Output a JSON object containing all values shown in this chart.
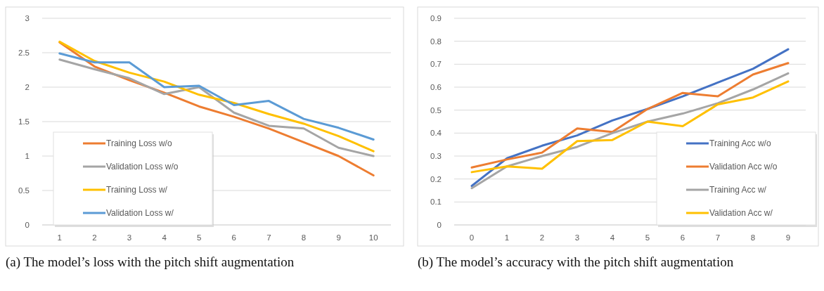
{
  "chart_data": [
    {
      "type": "line",
      "title": "(a) The model’s loss with the pitch shift augmentation",
      "categories": [
        "1",
        "2",
        "3",
        "4",
        "5",
        "6",
        "7",
        "8",
        "9",
        "10"
      ],
      "ylim": [
        0,
        3
      ],
      "yticks": [
        0,
        0.5,
        1,
        1.5,
        2,
        2.5,
        3
      ],
      "grid": "y",
      "legend": "bottom left",
      "marker": "none",
      "line_style": "solid",
      "series": [
        {
          "name": "Training Loss w/o",
          "color": "#ed7d31",
          "values": [
            2.65,
            2.3,
            2.1,
            1.92,
            1.72,
            1.57,
            1.4,
            1.2,
            1.0,
            0.72
          ]
        },
        {
          "name": "Validation Loss w/o",
          "color": "#a5a5a5",
          "values": [
            2.4,
            2.26,
            2.13,
            1.9,
            2.0,
            1.63,
            1.44,
            1.4,
            1.12,
            1.0
          ]
        },
        {
          "name": "Training Loss w/",
          "color": "#ffc000",
          "values": [
            2.66,
            2.38,
            2.21,
            2.08,
            1.89,
            1.77,
            1.61,
            1.47,
            1.29,
            1.07
          ]
        },
        {
          "name": "Validation Loss w/",
          "color": "#5b9bd5",
          "values": [
            2.49,
            2.36,
            2.36,
            2.0,
            2.02,
            1.74,
            1.8,
            1.54,
            1.41,
            1.24
          ]
        }
      ]
    },
    {
      "type": "line",
      "title": "(b) The model’s accuracy with the pitch shift augmentation",
      "categories": [
        "0",
        "1",
        "2",
        "3",
        "4",
        "5",
        "6",
        "7",
        "8",
        "9"
      ],
      "ylim": [
        0,
        0.9
      ],
      "yticks": [
        0,
        0.1,
        0.2,
        0.3,
        0.4,
        0.5,
        0.6,
        0.7,
        0.8,
        0.9
      ],
      "grid": "y",
      "legend": "bottom right",
      "marker": "none",
      "line_style": "solid",
      "series": [
        {
          "name": "Training Acc w/o",
          "color": "#4472c4",
          "values": [
            0.17,
            0.29,
            0.345,
            0.39,
            0.455,
            0.505,
            0.56,
            0.62,
            0.68,
            0.765
          ]
        },
        {
          "name": "Validation Acc w/o",
          "color": "#ed7d31",
          "values": [
            0.25,
            0.285,
            0.315,
            0.42,
            0.405,
            0.505,
            0.575,
            0.56,
            0.655,
            0.705
          ]
        },
        {
          "name": "Training Acc w/",
          "color": "#a5a5a5",
          "values": [
            0.16,
            0.255,
            0.3,
            0.34,
            0.4,
            0.45,
            0.485,
            0.53,
            0.59,
            0.66
          ]
        },
        {
          "name": "Validation Acc w/",
          "color": "#ffc000",
          "values": [
            0.23,
            0.255,
            0.245,
            0.365,
            0.37,
            0.45,
            0.43,
            0.525,
            0.555,
            0.625
          ]
        }
      ]
    }
  ]
}
